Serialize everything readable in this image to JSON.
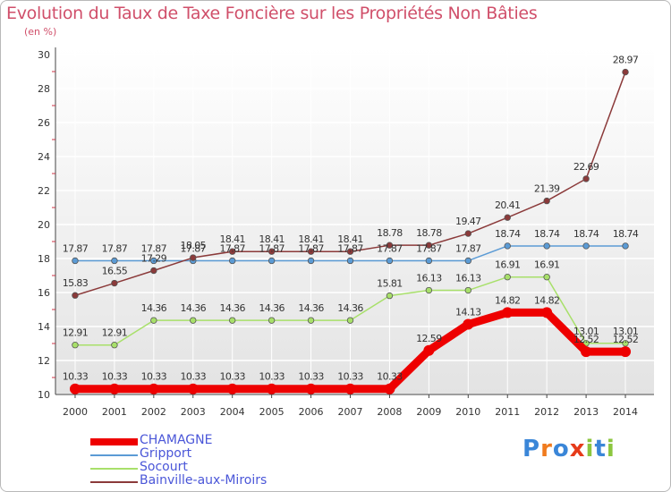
{
  "chart_data": {
    "type": "line",
    "title": "Evolution du Taux de Taxe Foncière sur les Propriétés Non Bâties",
    "subtitle": "(en %)",
    "xlabel": "",
    "ylabel": "",
    "categories": [
      "2000",
      "2001",
      "2002",
      "2003",
      "2004",
      "2005",
      "2006",
      "2007",
      "2008",
      "2009",
      "2010",
      "2011",
      "2012",
      "2013",
      "2014"
    ],
    "ylim": [
      10,
      30
    ],
    "yticks": [
      10,
      12,
      14,
      16,
      18,
      20,
      22,
      24,
      26,
      28,
      30
    ],
    "grid": true,
    "legend_position": "bottom-left",
    "series": [
      {
        "name": "CHAMAGNE",
        "color": "#ee0000",
        "values": [
          10.33,
          10.33,
          10.33,
          10.33,
          10.33,
          10.33,
          10.33,
          10.33,
          10.33,
          12.59,
          14.13,
          14.82,
          14.82,
          12.52,
          12.52
        ],
        "labels": [
          "10.33",
          "10.33",
          "10.33",
          "10.33",
          "10.33",
          "10.33",
          "10.33",
          "10.33",
          "10.33",
          "12.59",
          "14.13",
          "14.82",
          "14.82",
          "12.52",
          "12.52"
        ]
      },
      {
        "name": "Gripport",
        "color": "#5b9bd5",
        "values": [
          17.87,
          17.87,
          17.87,
          17.87,
          17.87,
          17.87,
          17.87,
          17.87,
          17.87,
          17.87,
          17.87,
          18.74,
          18.74,
          18.74,
          18.74
        ],
        "labels": [
          "17.87",
          "17.87",
          "17.87",
          "17.87",
          "17.87",
          "17.87",
          "17.87",
          "17.87",
          "17.87",
          "17.87",
          "17.87",
          "18.74",
          "18.74",
          "18.74",
          "18.74"
        ]
      },
      {
        "name": "Socourt",
        "color": "#a8e06a",
        "values": [
          12.91,
          12.91,
          14.36,
          14.36,
          14.36,
          14.36,
          14.36,
          14.36,
          15.81,
          16.13,
          16.13,
          16.91,
          16.91,
          13.01,
          13.01
        ],
        "labels": [
          "12.91",
          "12.91",
          "14.36",
          "14.36",
          "14.36",
          "14.36",
          "14.36",
          "14.36",
          "15.81",
          "16.13",
          "16.13",
          "16.91",
          "16.91",
          "13.01",
          "13.01"
        ]
      },
      {
        "name": "Bainville-aux-Miroirs",
        "color": "#8b3a3a",
        "values": [
          15.83,
          16.55,
          17.29,
          18.05,
          18.41,
          18.41,
          18.41,
          18.41,
          18.78,
          18.78,
          19.47,
          20.41,
          21.39,
          22.69,
          28.97
        ],
        "labels": [
          "15.83",
          "16.55",
          "17.29",
          "18.05",
          "18.41",
          "18.41",
          "18.41",
          "18.41",
          "18.78",
          "18.78",
          "19.47",
          "20.41",
          "21.39",
          "22.69",
          "28.97"
        ]
      }
    ]
  },
  "logo": {
    "text": "Proxiti",
    "letter_colors": [
      "#3a86d8",
      "#f07b1e",
      "#3a86d8",
      "#e63b1a",
      "#8cc63f",
      "#3a86d8",
      "#8cc63f"
    ]
  }
}
